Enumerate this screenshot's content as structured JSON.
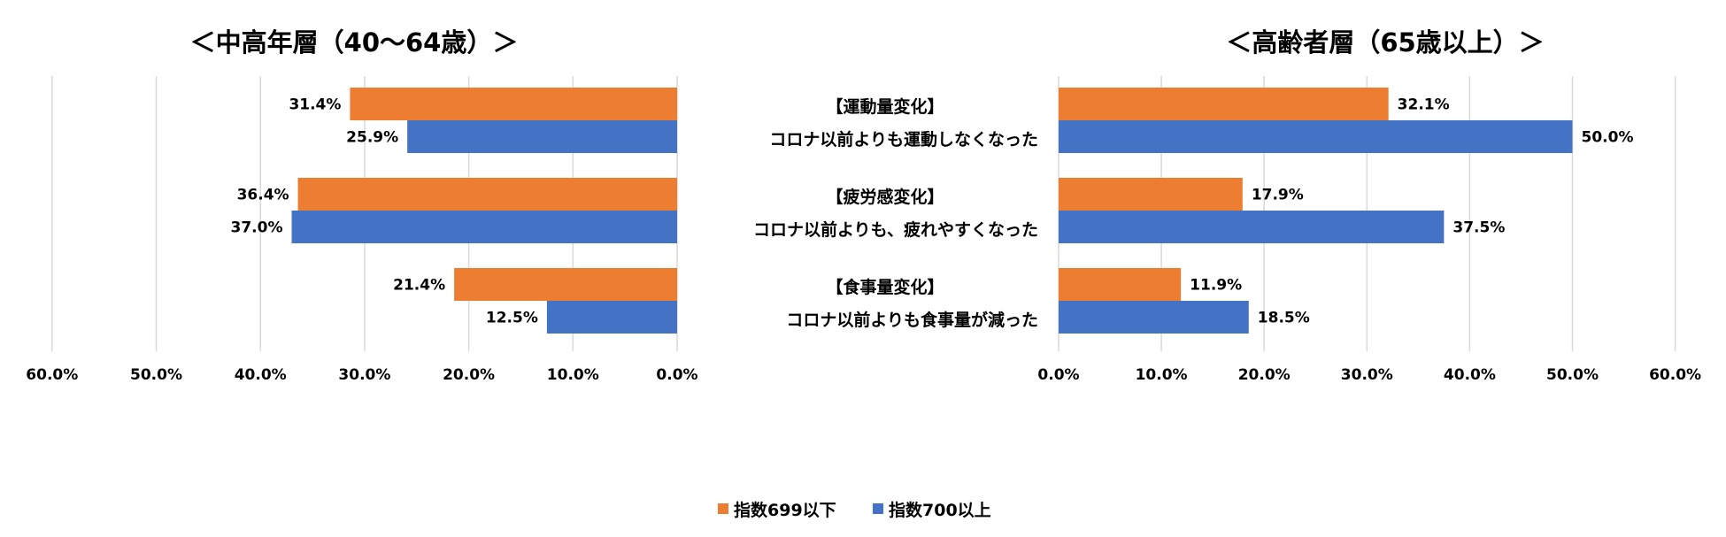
{
  "chart_data": [
    {
      "type": "bar",
      "orientation": "horizontal",
      "direction": "right-to-left",
      "title": "＜中高年層（40〜64歳）＞",
      "xlim": [
        0,
        60
      ],
      "x_ticks": [
        "60.0%",
        "50.0%",
        "40.0%",
        "30.0%",
        "20.0%",
        "10.0%",
        "0.0%"
      ],
      "grid": true,
      "series": [
        {
          "name": "指数699以下",
          "color": "#ED7D31",
          "values": [
            31.4,
            36.4,
            21.4
          ],
          "labels": [
            "31.4%",
            "36.4%",
            "21.4%"
          ]
        },
        {
          "name": "指数700以上",
          "color": "#4472C4",
          "values": [
            25.9,
            37.0,
            12.5
          ],
          "labels": [
            "25.9%",
            "37.0%",
            "12.5%"
          ]
        }
      ]
    },
    {
      "type": "bar",
      "orientation": "horizontal",
      "direction": "left-to-right",
      "title": "＜高齢者層（65歳以上）＞",
      "xlim": [
        0,
        60
      ],
      "x_ticks": [
        "0.0%",
        "10.0%",
        "20.0%",
        "30.0%",
        "40.0%",
        "50.0%",
        "60.0%"
      ],
      "grid": true,
      "series": [
        {
          "name": "指数699以下",
          "color": "#ED7D31",
          "values": [
            32.1,
            17.9,
            11.9
          ],
          "labels": [
            "32.1%",
            "17.9%",
            "11.9%"
          ]
        },
        {
          "name": "指数700以上",
          "color": "#4472C4",
          "values": [
            50.0,
            37.5,
            18.5
          ],
          "labels": [
            "50.0%",
            "37.5%",
            "18.5%"
          ]
        }
      ]
    }
  ],
  "categories": [
    {
      "heading": "【運動量変化】",
      "description": "コロナ以前よりも運動しなくなった"
    },
    {
      "heading": "【疲労感変化】",
      "description": "コロナ以前よりも、疲れやすくなった"
    },
    {
      "heading": "【食事量変化】",
      "description": "コロナ以前よりも食事量が減った"
    }
  ],
  "legend": {
    "position": "bottom",
    "items": [
      {
        "label": "指数699以下",
        "color": "#ED7D31"
      },
      {
        "label": "指数700以上",
        "color": "#4472C4"
      }
    ]
  }
}
